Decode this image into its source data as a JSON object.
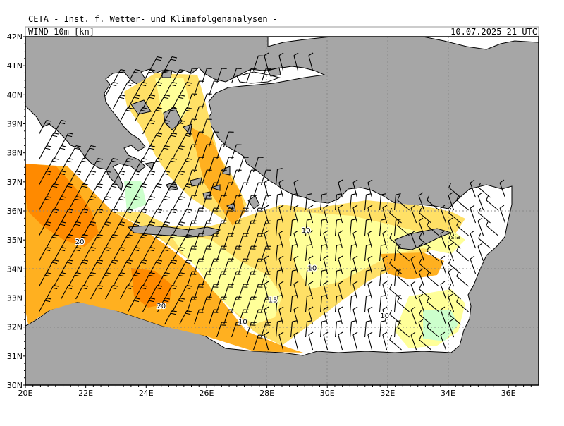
{
  "header": {
    "title": "CETA - Inst. f. Wetter- und Klimafolgenanalysen -",
    "product": "WIND 10m [kn]",
    "valid_time": "10.07.2025 21 UTC"
  },
  "axes": {
    "lat_labels": [
      "42N",
      "41N",
      "40N",
      "39N",
      "38N",
      "37N",
      "36N",
      "35N",
      "34N",
      "33N",
      "32N",
      "31N",
      "30N"
    ],
    "lon_labels": [
      "20E",
      "22E",
      "24E",
      "26E",
      "28E",
      "30E",
      "32E",
      "34E",
      "36E"
    ]
  },
  "contour_labels": [
    {
      "text": "20",
      "lon": 21.8,
      "lat": 34.95
    },
    {
      "text": "20",
      "lon": 24.5,
      "lat": 32.75
    },
    {
      "text": "10",
      "lon": 29.3,
      "lat": 35.35
    },
    {
      "text": "10",
      "lon": 29.5,
      "lat": 34.05
    },
    {
      "text": "15",
      "lon": 28.2,
      "lat": 32.95
    },
    {
      "text": "10",
      "lon": 27.2,
      "lat": 32.2
    },
    {
      "text": "10",
      "lon": 31.9,
      "lat": 32.4
    }
  ],
  "place_label": {
    "text": "sia",
    "lon": 34.1,
    "lat": 35.1
  },
  "colors": {
    "land": "#a6a6a6",
    "sea": "#ffffff",
    "wind_lt5": "#ccffcc",
    "wind_5_10": "#ffff99",
    "wind_10_15": "#ffe066",
    "wind_15_20": "#ffb020",
    "wind_20_25": "#ff8a00"
  }
}
